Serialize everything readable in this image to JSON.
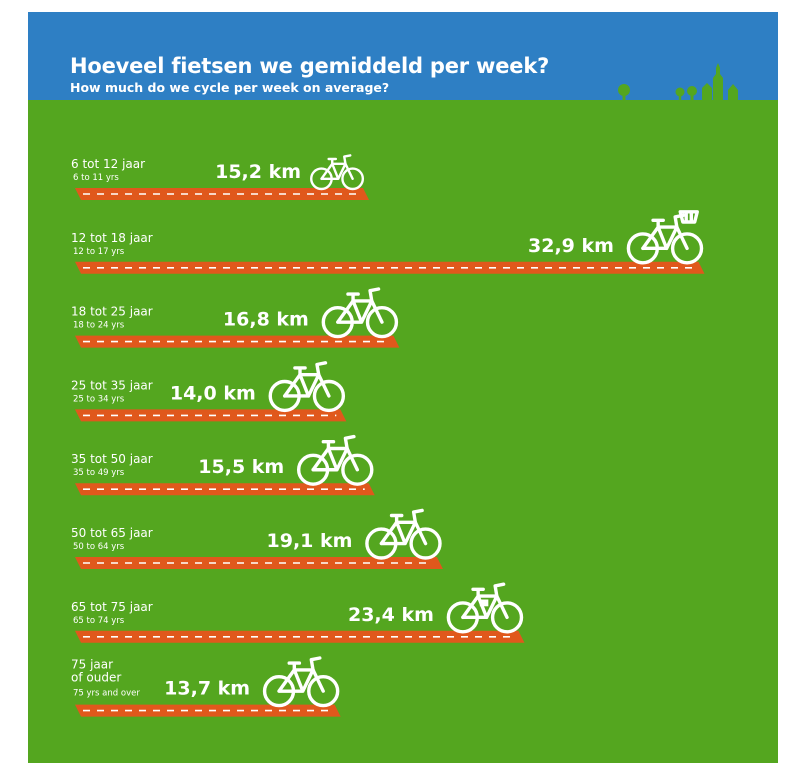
{
  "header": {
    "title": "Hoeveel fietsen we gemiddeld per week?",
    "subtitle": "How much do we cycle per week on average?"
  },
  "colors": {
    "sky": "#2e7fc4",
    "grass": "#54a61f",
    "road": "#e0581c",
    "text": "#ffffff"
  },
  "chart_data": {
    "type": "bar",
    "orientation": "horizontal",
    "title": "Hoeveel fietsen we gemiddeld per week?",
    "subtitle": "How much do we cycle per week on average?",
    "unit": "km",
    "categories": [
      [
        "6 tot 12 jaar"
      ],
      [
        "12 tot 18 jaar"
      ],
      [
        "18 tot 25 jaar"
      ],
      [
        "25 tot 35 jaar"
      ],
      [
        "35 tot 50 jaar"
      ],
      [
        "50 tot 65 jaar"
      ],
      [
        "65 tot 75 jaar"
      ],
      [
        "75 jaar",
        "of ouder"
      ]
    ],
    "categories_en": [
      "6 to 11 yrs",
      "12 to 17 yrs",
      "18 to 24 yrs",
      "25 to 34 yrs",
      "35 to 49 yrs",
      "50 to 64 yrs",
      "65 to 74 yrs",
      "75 yrs and over"
    ],
    "values": [
      15.2,
      32.9,
      16.8,
      14.0,
      15.5,
      19.1,
      23.4,
      13.7
    ],
    "value_labels": [
      "15,2 km",
      "32,9 km",
      "16,8 km",
      "14,0 km",
      "15,5 km",
      "19,1 km",
      "23,4 km",
      "13,7 km"
    ],
    "icons": [
      "child-bike-icon",
      "basket-bike-icon",
      "bike-icon",
      "bike-icon",
      "bike-icon",
      "bike-icon",
      "e-bike-icon",
      "bike-icon"
    ],
    "xlim": [
      0,
      33
    ],
    "grid": false,
    "legend": "none"
  }
}
